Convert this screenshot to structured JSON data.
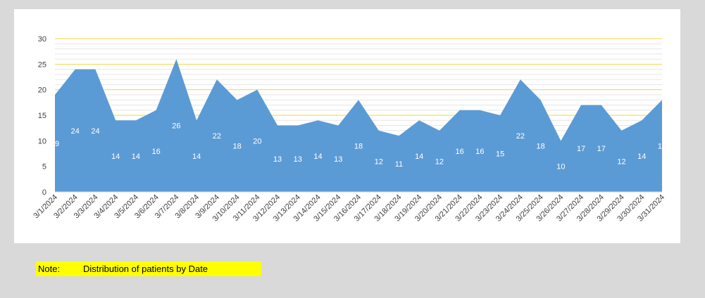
{
  "chart_data": {
    "type": "area",
    "title": "",
    "xlabel": "",
    "ylabel": "",
    "categories": [
      "3/1/2024",
      "3/2/2024",
      "3/3/2024",
      "3/4/2024",
      "3/5/2024",
      "3/6/2024",
      "3/7/2024",
      "3/8/2024",
      "3/9/2024",
      "3/10/2024",
      "3/11/2024",
      "3/12/2024",
      "3/13/2024",
      "3/14/2024",
      "3/15/2024",
      "3/16/2024",
      "3/17/2024",
      "3/18/2024",
      "3/19/2024",
      "3/20/2024",
      "3/21/2024",
      "3/22/2024",
      "3/23/2024",
      "3/24/2024",
      "3/25/2024",
      "3/26/2024",
      "3/27/2024",
      "3/28/2024",
      "3/29/2024",
      "3/30/2024",
      "3/31/2024"
    ],
    "values": [
      19,
      24,
      24,
      14,
      14,
      16,
      26,
      14,
      22,
      18,
      20,
      13,
      13,
      14,
      13,
      18,
      12,
      11,
      14,
      12,
      16,
      16,
      15,
      22,
      18,
      10,
      17,
      17,
      12,
      14,
      18
    ],
    "ylim": [
      0,
      30
    ],
    "yticks": [
      0,
      5,
      10,
      15,
      20,
      25,
      30
    ],
    "grid": true,
    "legend": "none",
    "colors": {
      "area": "#5b9bd5",
      "major_grid": "#f5d442",
      "minor_grid": "#e6e6e6",
      "data_label": "#ffffff"
    }
  },
  "note": {
    "label": "Note:",
    "text": "Distribution of patients by Date",
    "background": "#ffff00"
  }
}
